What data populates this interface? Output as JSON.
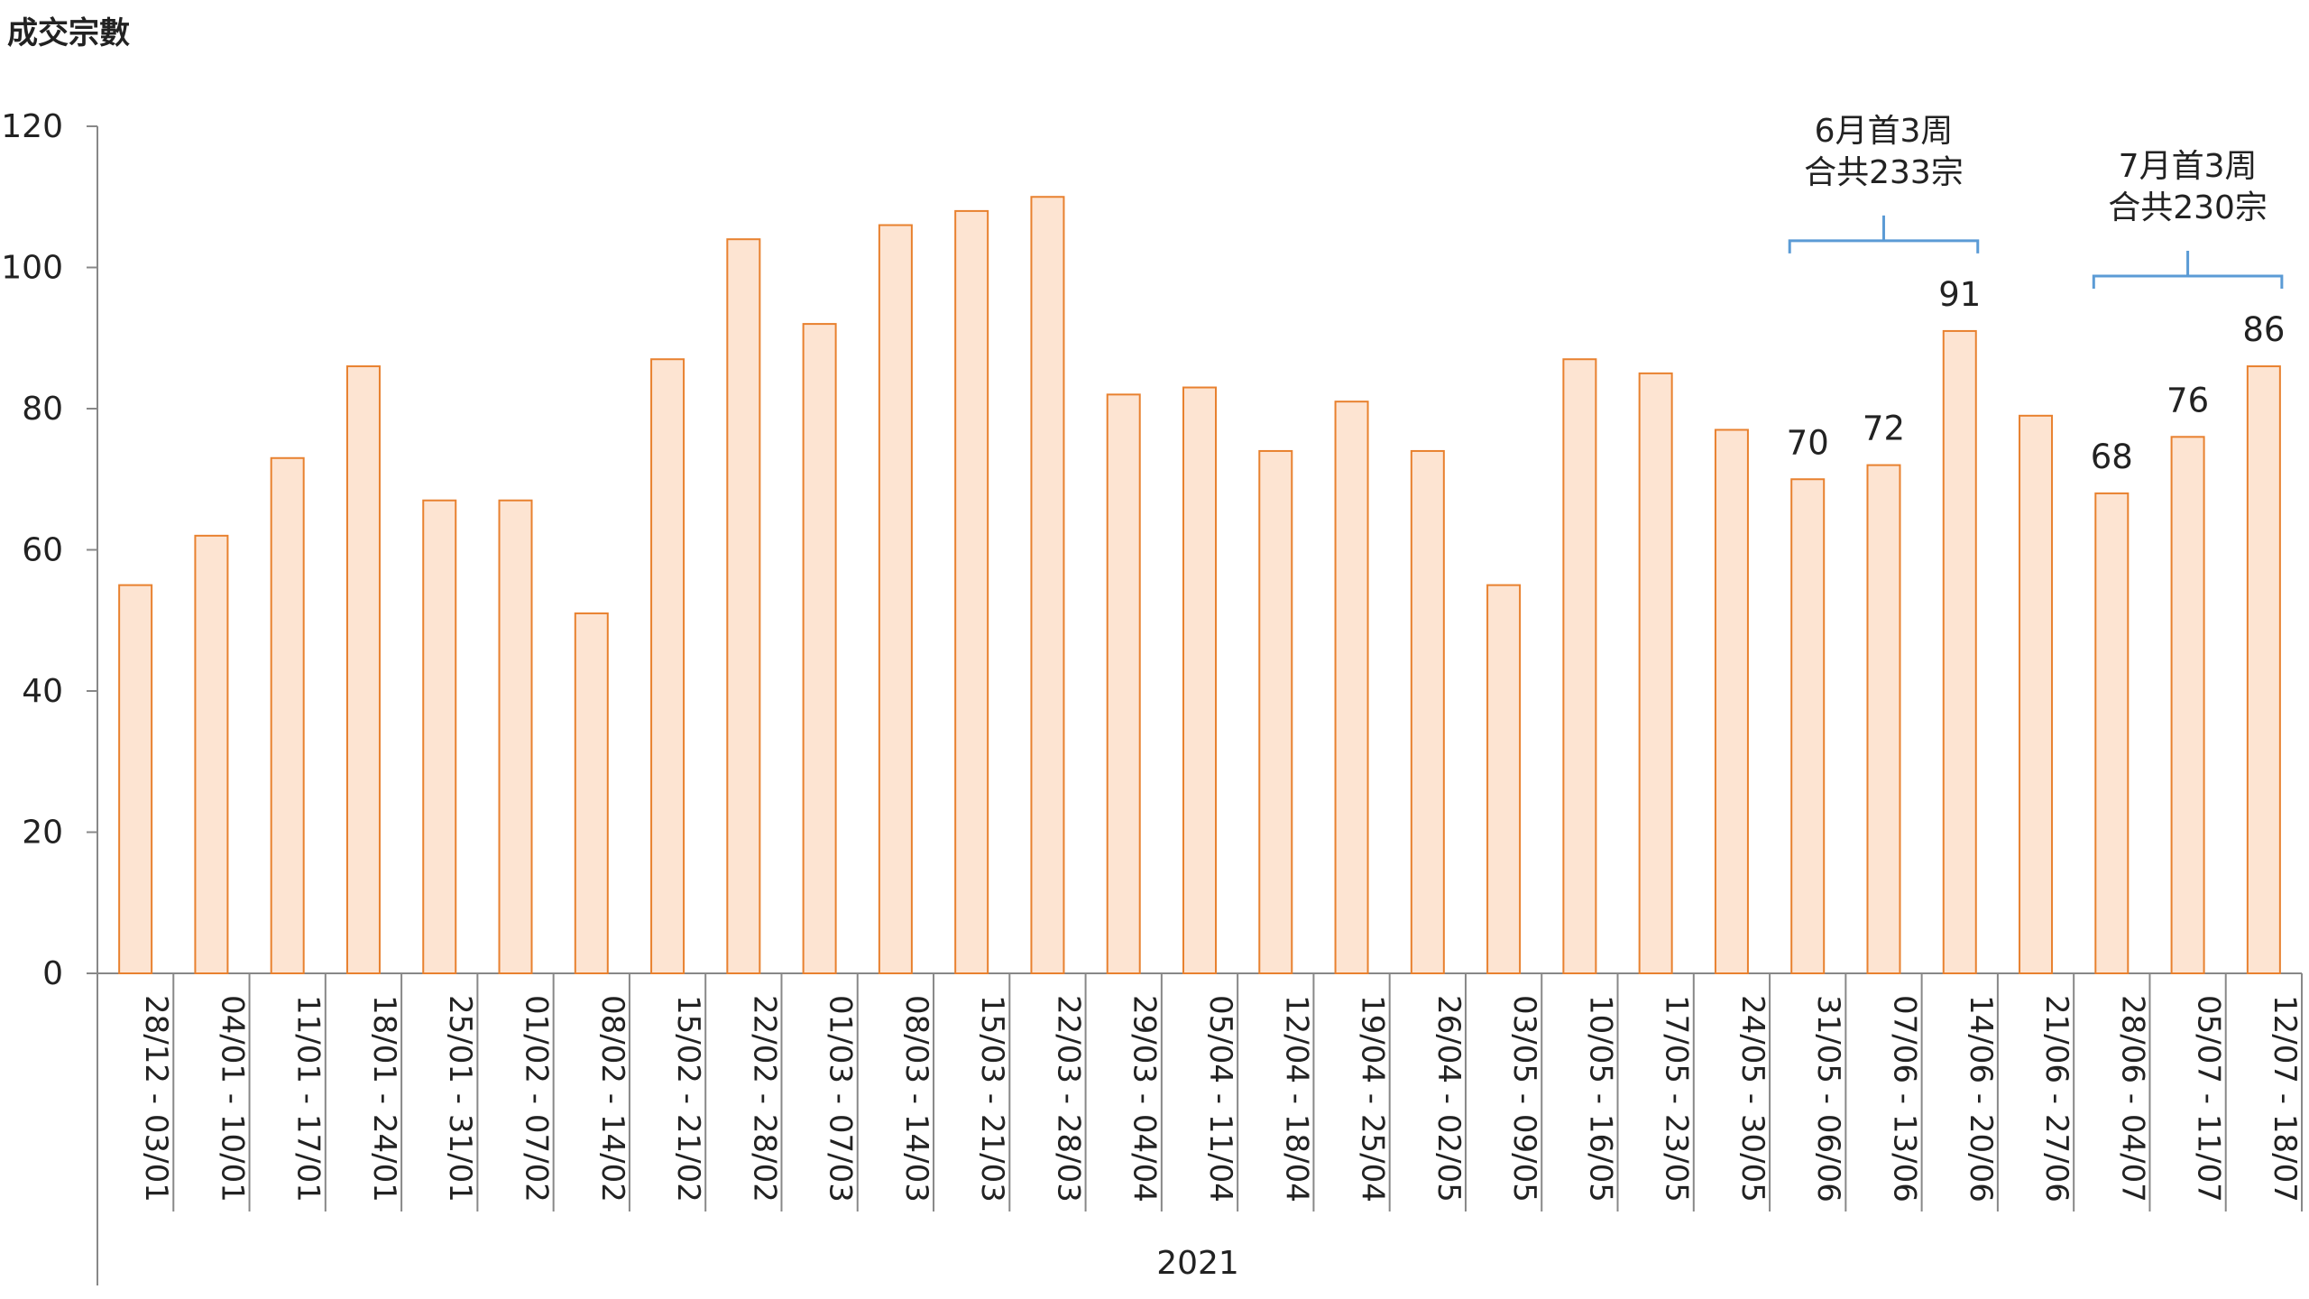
{
  "chart_data": {
    "type": "bar",
    "ylabel": "成交宗數",
    "ylim": [
      0,
      120
    ],
    "yticks": [
      "0",
      "20",
      "40",
      "60",
      "80",
      "100",
      "120"
    ],
    "categories": [
      "28/12 - 03/01",
      "04/01 - 10/01",
      "11/01 - 17/01",
      "18/01 - 24/01",
      "25/01 - 31/01",
      "01/02 - 07/02",
      "08/02 - 14/02",
      "15/02 - 21/02",
      "22/02 - 28/02",
      "01/03 - 07/03",
      "08/03 - 14/03",
      "15/03 - 21/03",
      "22/03 - 28/03",
      "29/03 - 04/04",
      "05/04 - 11/04",
      "12/04 - 18/04",
      "19/04 - 25/04",
      "26/04 - 02/05",
      "03/05 - 09/05",
      "10/05 - 16/05",
      "17/05 - 23/05",
      "24/05 - 30/05",
      "31/05 - 06/06",
      "07/06 - 13/06",
      "14/06 - 20/06",
      "21/06 - 27/06",
      "28/06 - 04/07",
      "05/07 - 11/07",
      "12/07 - 18/07"
    ],
    "values": [
      55,
      62,
      73,
      86,
      67,
      67,
      51,
      87,
      104,
      92,
      106,
      108,
      110,
      82,
      83,
      74,
      81,
      74,
      55,
      87,
      85,
      77,
      70,
      72,
      91,
      79,
      68,
      76,
      86
    ],
    "labeled_indices": [
      22,
      23,
      24,
      26,
      27,
      28
    ],
    "year_label": "2021",
    "colors": {
      "bar_fill": "#fde4d2",
      "bar_stroke": "#e8812f",
      "bracket": "#5b9bd5",
      "axis": "#888888"
    },
    "annotations": [
      {
        "line1": "6月首3周",
        "line2": "合共233宗",
        "from_index": 22,
        "to_index": 24
      },
      {
        "line1": "7月首3周",
        "line2": "合共230宗",
        "from_index": 26,
        "to_index": 28
      }
    ]
  }
}
